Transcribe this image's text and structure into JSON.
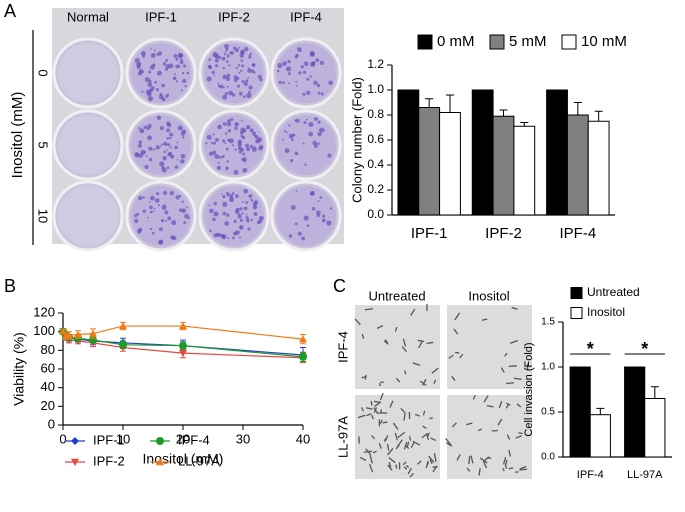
{
  "panels": {
    "A": {
      "letter": "A",
      "columns": [
        "Normal",
        "IPF-1",
        "IPF-2",
        "IPF-4"
      ],
      "rows_title": "Inositol (mM)",
      "rows": [
        "0",
        "5",
        "10"
      ]
    },
    "B": {
      "letter": "B"
    },
    "C": {
      "letter": "C",
      "columns": [
        "Untreated",
        "Inositol"
      ],
      "rows": [
        "IPF-4",
        "LL-97A"
      ]
    }
  },
  "chart_data": [
    {
      "type": "bar",
      "ylabel": "Colony number (Fold)",
      "categories": [
        "IPF-1",
        "IPF-2",
        "IPF-4"
      ],
      "series": [
        {
          "name": "0 mM",
          "color": "#000000",
          "values": [
            1,
            1,
            1
          ],
          "errors": [
            0,
            0,
            0
          ]
        },
        {
          "name": "5 mM",
          "color": "#808080",
          "values": [
            0.86,
            0.79,
            0.8
          ],
          "errors": [
            0.07,
            0.05,
            0.1
          ]
        },
        {
          "name": "10 mM",
          "color": "#ffffff",
          "values": [
            0.82,
            0.71,
            0.75
          ],
          "errors": [
            0.14,
            0.03,
            0.08
          ]
        }
      ],
      "ylim": [
        0,
        1.2
      ],
      "yticks": [
        {
          "value": 0,
          "label": "0.0"
        },
        {
          "value": 0.2,
          "label": "0.2"
        },
        {
          "value": 0.4,
          "label": "0.4"
        },
        {
          "value": 0.6,
          "label": "0.6"
        },
        {
          "value": 0.8,
          "label": "0.8"
        },
        {
          "value": 1,
          "label": "1.0"
        },
        {
          "value": 1.2,
          "label": "1.2"
        }
      ],
      "legend": "top"
    },
    {
      "type": "line",
      "xlabel": "Inositol (mM)",
      "ylabel": "Viability (%)",
      "x": [
        0,
        0.5,
        1,
        2.5,
        5,
        10,
        20,
        40
      ],
      "series": [
        {
          "name": "IPF-1",
          "color": "#1f3fcf",
          "marker": "diamond",
          "values": [
            100,
            95,
            93,
            92,
            90,
            88,
            85,
            75
          ],
          "errors": [
            2,
            3,
            3,
            3,
            4,
            5,
            6,
            8
          ]
        },
        {
          "name": "IPF-2",
          "color": "#e8473f",
          "marker": "triangle-down",
          "values": [
            100,
            94,
            91,
            90,
            88,
            83,
            77,
            72
          ],
          "errors": [
            2,
            3,
            3,
            3,
            4,
            4,
            5,
            5
          ]
        },
        {
          "name": "IPF-4",
          "color": "#1e9a2a",
          "marker": "circle",
          "values": [
            100,
            96,
            94,
            93,
            91,
            86,
            85,
            73
          ],
          "errors": [
            2,
            3,
            3,
            3,
            3,
            4,
            4,
            5
          ]
        },
        {
          "name": "LL-97A",
          "color": "#f07a1a",
          "marker": "triangle-up",
          "values": [
            100,
            95,
            96,
            97,
            98,
            106,
            106,
            92
          ],
          "errors": [
            2,
            3,
            4,
            4,
            5,
            4,
            4,
            5
          ]
        }
      ],
      "xlim": [
        0,
        40
      ],
      "xticks": [
        0,
        10,
        20,
        30,
        40
      ],
      "ylim": [
        0,
        120
      ],
      "yticks": [
        0,
        20,
        40,
        60,
        80,
        100,
        120
      ],
      "legend": "lower left"
    },
    {
      "type": "bar",
      "ylabel": "Cell invasion (Fold)",
      "categories": [
        "IPF-4",
        "LL-97A"
      ],
      "series": [
        {
          "name": "Untreated",
          "color": "#000000",
          "values": [
            1,
            1
          ],
          "errors": [
            0,
            0
          ]
        },
        {
          "name": "Inositol",
          "color": "#ffffff",
          "values": [
            0.47,
            0.65
          ],
          "errors": [
            0.07,
            0.13
          ]
        }
      ],
      "ylim": [
        0,
        1.5
      ],
      "yticks": [
        {
          "value": 0,
          "label": "0.0"
        },
        {
          "value": 0.5,
          "label": "0.5"
        },
        {
          "value": 1,
          "label": "1.0"
        },
        {
          "value": 1.5,
          "label": "1.5"
        }
      ],
      "annotations": [
        {
          "text": "*",
          "category": "IPF-4"
        },
        {
          "text": "*",
          "category": "LL-97A"
        }
      ],
      "legend": "top left"
    }
  ]
}
